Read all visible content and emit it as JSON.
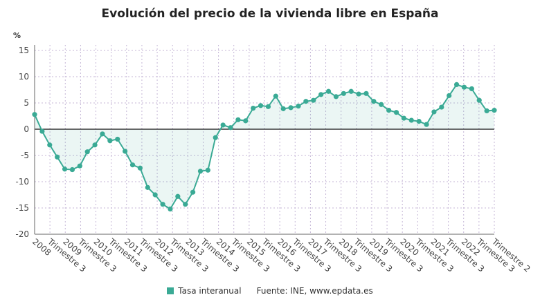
{
  "chart_data": {
    "type": "line",
    "title": "Evolución del precio de la vivienda libre en España",
    "ylabel": "%",
    "ylim": [
      -20,
      15
    ],
    "yticks": [
      -20,
      -15,
      -10,
      -5,
      0,
      5,
      10,
      15
    ],
    "xtick_labels": [
      "2008",
      "Trimestre 3",
      "2009",
      "Trimestre 3",
      "2010",
      "Trimestre 3",
      "2011",
      "Trimestre 3",
      "2012",
      "Trimestre 3",
      "2013",
      "Trimestre 3",
      "2014",
      "Trimestre 3",
      "2015",
      "Trimestre 3",
      "2016",
      "Trimestre 3",
      "2017",
      "Trimestre 3",
      "2018",
      "Trimestre 3",
      "2019",
      "Trimestre 3",
      "2020",
      "Trimestre 3",
      "2021",
      "Trimestre 3",
      "2022",
      "Trimestre 3",
      "Trimestre 2"
    ],
    "series": [
      {
        "name": "Tasa interanual",
        "color": "#3aaa95",
        "values": [
          2.8,
          -0.4,
          -3.0,
          -5.3,
          -7.6,
          -7.7,
          -7.0,
          -4.3,
          -3.0,
          -0.9,
          -2.2,
          -1.9,
          -4.2,
          -6.8,
          -7.4,
          -11.1,
          -12.5,
          -14.3,
          -15.2,
          -12.8,
          -14.3,
          -12.0,
          -8.0,
          -7.8,
          -1.6,
          0.8,
          0.3,
          1.8,
          1.6,
          4.0,
          4.5,
          4.3,
          6.3,
          3.9,
          4.1,
          4.4,
          5.3,
          5.5,
          6.6,
          7.2,
          6.2,
          6.8,
          7.2,
          6.7,
          6.8,
          5.3,
          4.7,
          3.6,
          3.2,
          2.1,
          1.7,
          1.5,
          0.9,
          3.3,
          4.2,
          6.4,
          8.5,
          8.0,
          7.7,
          5.5,
          3.5,
          3.6
        ]
      }
    ],
    "grid": true,
    "legend_position": "bottom"
  },
  "legend": {
    "series_label": "Tasa interanual",
    "source": "Fuente: INE, www.epdata.es"
  }
}
